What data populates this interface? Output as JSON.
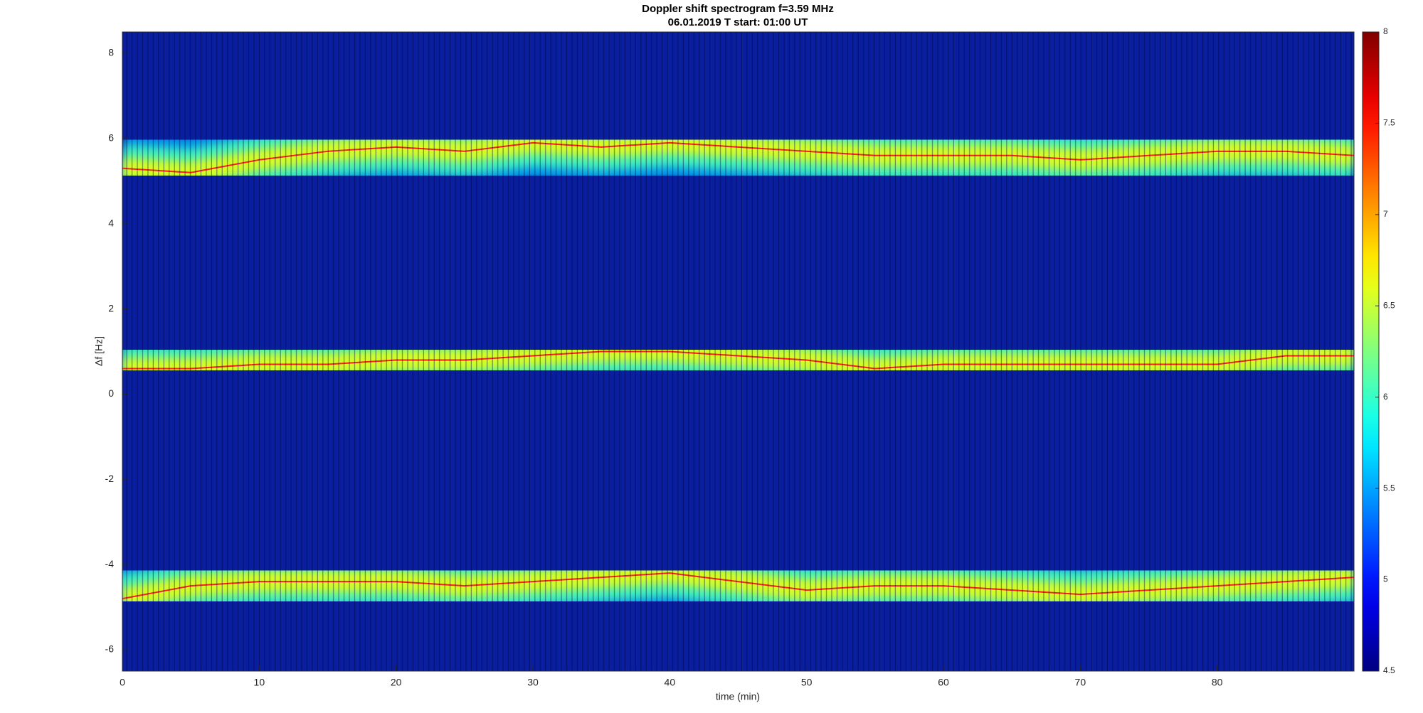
{
  "chart_data": {
    "type": "spectrogram",
    "title": "Doppler shift spectrogram f=3.59 MHz",
    "subtitle": "06.01.2019    T start: 01:00 UT",
    "xlabel": "time (min)",
    "ylabel": "Δf [Hz]",
    "xlim": [
      0,
      90
    ],
    "xticks": [
      0,
      10,
      20,
      30,
      40,
      50,
      60,
      70,
      80
    ],
    "ylim": [
      -6.5,
      8.5
    ],
    "yticks": [
      -6,
      -4,
      -2,
      0,
      2,
      4,
      6,
      8
    ],
    "colormap": "jet",
    "clim": [
      4.5,
      8
    ],
    "cticks": [
      4.5,
      5,
      5.5,
      6,
      6.5,
      7,
      7.5,
      8
    ],
    "x": [
      0,
      5,
      10,
      15,
      20,
      25,
      30,
      35,
      40,
      45,
      50,
      55,
      60,
      65,
      70,
      75,
      80,
      85,
      90
    ],
    "series": [
      {
        "color": "#ff2020",
        "values": [
          5.3,
          5.2,
          5.5,
          5.7,
          5.8,
          5.7,
          5.9,
          5.8,
          5.9,
          5.8,
          5.7,
          5.6,
          5.6,
          5.6,
          5.5,
          5.6,
          5.7,
          5.7,
          5.6
        ]
      },
      {
        "color": "#ff2020",
        "values": [
          0.6,
          0.6,
          0.7,
          0.7,
          0.8,
          0.8,
          0.9,
          1.0,
          1.0,
          0.9,
          0.8,
          0.6,
          0.7,
          0.7,
          0.7,
          0.7,
          0.7,
          0.9,
          0.9
        ]
      },
      {
        "color": "#ff2020",
        "values": [
          -4.8,
          -4.5,
          -4.4,
          -4.4,
          -4.4,
          -4.5,
          -4.4,
          -4.3,
          -4.2,
          -4.4,
          -4.6,
          -4.5,
          -4.5,
          -4.6,
          -4.7,
          -4.6,
          -4.5,
          -4.4,
          -4.3
        ]
      }
    ]
  }
}
